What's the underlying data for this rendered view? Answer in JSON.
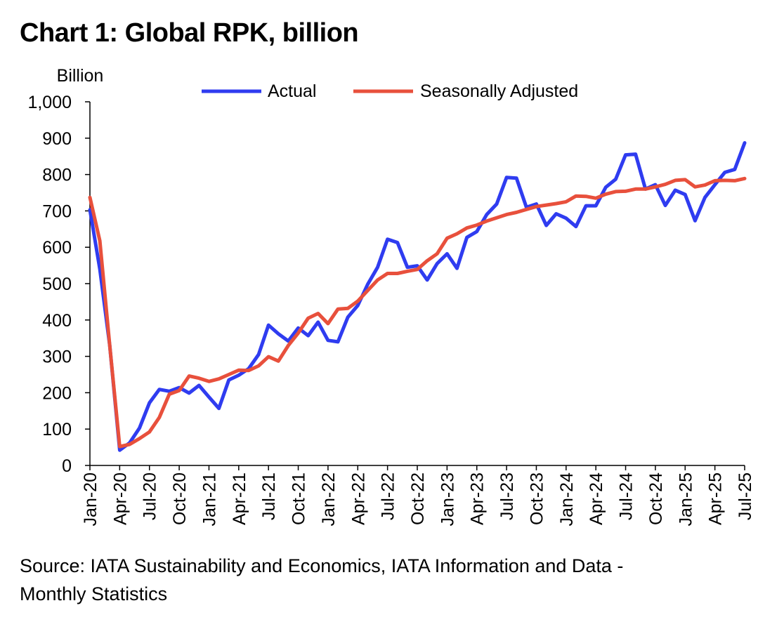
{
  "title": "Chart 1: Global RPK, billion",
  "source_lines": [
    "Source: IATA Sustainability and Economics, IATA Information and Data -",
    "Monthly Statistics"
  ],
  "colors": {
    "actual": "#2f3cf0",
    "seasonally_adjusted": "#e8503c",
    "axis": "#000000"
  },
  "chart_data": {
    "type": "line",
    "title": "Chart 1: Global RPK, billion",
    "ylabel": "Billion",
    "xlabel": "",
    "ylim": [
      0,
      1000
    ],
    "yticks": [
      0,
      100,
      200,
      300,
      400,
      500,
      600,
      700,
      800,
      900,
      1000
    ],
    "ytick_labels": [
      "0",
      "100",
      "200",
      "300",
      "400",
      "500",
      "600",
      "700",
      "800",
      "900",
      "1,000"
    ],
    "grid": false,
    "legend": "top-center",
    "xtick_labels": [
      "Jan-20",
      "Apr-20",
      "Jul-20",
      "Oct-20",
      "Jan-21",
      "Apr-21",
      "Jul-21",
      "Oct-21",
      "Jan-22",
      "Apr-22",
      "Jul-22",
      "Oct-22",
      "Jan-23",
      "Apr-23",
      "Jul-23",
      "Oct-23",
      "Jan-24",
      "Apr-24",
      "Jul-24",
      "Oct-24",
      "Jan-25",
      "Apr-25",
      "Jul-25"
    ],
    "x": [
      "Jan-20",
      "Feb-20",
      "Mar-20",
      "Apr-20",
      "May-20",
      "Jun-20",
      "Jul-20",
      "Aug-20",
      "Sep-20",
      "Oct-20",
      "Nov-20",
      "Dec-20",
      "Jan-21",
      "Feb-21",
      "Mar-21",
      "Apr-21",
      "May-21",
      "Jun-21",
      "Jul-21",
      "Aug-21",
      "Sep-21",
      "Oct-21",
      "Nov-21",
      "Dec-21",
      "Jan-22",
      "Feb-22",
      "Mar-22",
      "Apr-22",
      "May-22",
      "Jun-22",
      "Jul-22",
      "Aug-22",
      "Sep-22",
      "Oct-22",
      "Nov-22",
      "Dec-22",
      "Jan-23",
      "Feb-23",
      "Mar-23",
      "Apr-23",
      "May-23",
      "Jun-23",
      "Jul-23",
      "Aug-23",
      "Sep-23",
      "Oct-23",
      "Nov-23",
      "Dec-23",
      "Jan-24",
      "Feb-24",
      "Mar-24",
      "Apr-24",
      "May-24",
      "Jun-24",
      "Jul-24",
      "Aug-24",
      "Sep-24",
      "Oct-24",
      "Nov-24",
      "Dec-24",
      "Jan-25",
      "Feb-25",
      "Mar-25",
      "Apr-25",
      "May-25",
      "Jun-25",
      "Jul-25"
    ],
    "series": [
      {
        "name": "Actual",
        "values": [
          703,
          540,
          330,
          42,
          62,
          103,
          172,
          209,
          204,
          214,
          199,
          220,
          188,
          157,
          235,
          248,
          266,
          305,
          386,
          362,
          342,
          378,
          357,
          394,
          344,
          340,
          408,
          440,
          498,
          545,
          622,
          613,
          545,
          549,
          510,
          555,
          582,
          542,
          627,
          643,
          690,
          719,
          792,
          790,
          710,
          719,
          660,
          692,
          680,
          657,
          714,
          714,
          765,
          787,
          854,
          856,
          760,
          772,
          715,
          757,
          745,
          673,
          737,
          772,
          806,
          814,
          887
        ]
      },
      {
        "name": "Seasonally Adjusted",
        "values": [
          737,
          618,
          330,
          52,
          58,
          74,
          92,
          132,
          196,
          206,
          246,
          240,
          231,
          238,
          250,
          262,
          261,
          274,
          299,
          287,
          330,
          364,
          405,
          418,
          390,
          430,
          432,
          452,
          481,
          510,
          528,
          528,
          534,
          539,
          563,
          582,
          625,
          637,
          653,
          661,
          672,
          681,
          690,
          696,
          704,
          712,
          716,
          720,
          725,
          741,
          740,
          735,
          746,
          753,
          754,
          760,
          760,
          766,
          773,
          784,
          786,
          766,
          771,
          783,
          784,
          783,
          789
        ]
      }
    ]
  }
}
